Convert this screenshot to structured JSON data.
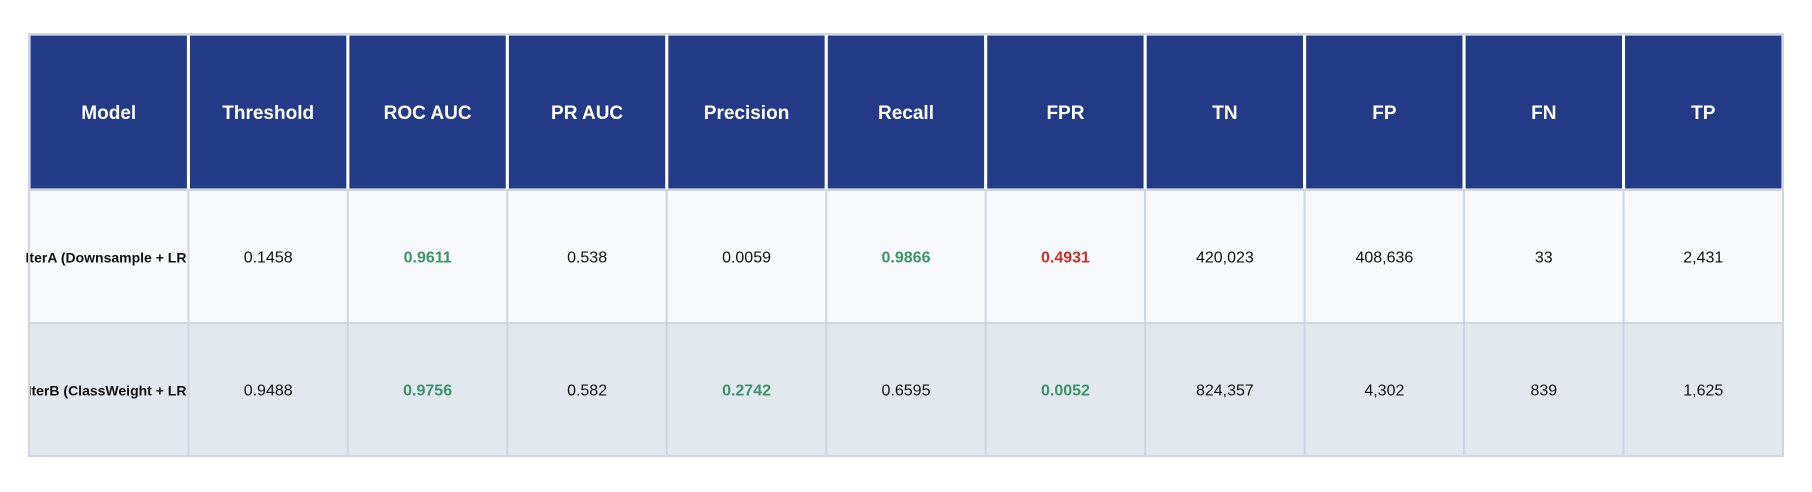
{
  "chart_data": {
    "type": "table",
    "columns": [
      "Model",
      "Threshold",
      "ROC AUC",
      "PR AUC",
      "Precision",
      "Recall",
      "FPR",
      "TN",
      "FP",
      "FN",
      "TP"
    ],
    "rows": [
      {
        "cells": [
          "IterA (Downsample + LR",
          "0.1458",
          "0.9611",
          "0.538",
          "0.0059",
          "0.9866",
          "0.4931",
          "420,023",
          "408,636",
          "33",
          "2,431"
        ],
        "highlight": [
          "",
          "",
          "good",
          "",
          "",
          "good",
          "bad",
          "",
          "",
          "",
          ""
        ]
      },
      {
        "cells": [
          "IterB (ClassWeight + LR",
          "0.9488",
          "0.9756",
          "0.582",
          "0.2742",
          "0.6595",
          "0.0052",
          "824,357",
          "4,302",
          "839",
          "1,625"
        ],
        "highlight": [
          "",
          "",
          "good",
          "",
          "good",
          "",
          "good",
          "",
          "",
          "",
          ""
        ]
      }
    ],
    "colors": {
      "header_bg": "#233a86",
      "header_text": "#ffffff",
      "row_odd_bg": "#f7f9fb",
      "row_even_bg": "#e3e8ef",
      "border": "#cfd6e2",
      "good": "#3a9467",
      "bad": "#d02c2c"
    }
  }
}
